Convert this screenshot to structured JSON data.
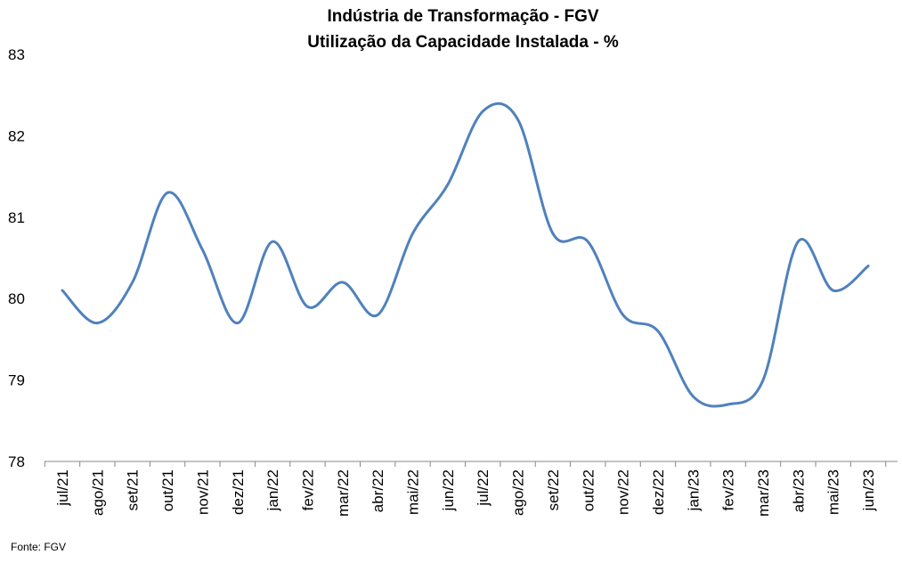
{
  "chart_data": {
    "type": "line",
    "title": "Indústria de Transformação - FGV",
    "subtitle": "Utilização da Capacidade Instalada - %",
    "categories": [
      "jul/21",
      "ago/21",
      "set/21",
      "out/21",
      "nov/21",
      "dez/21",
      "jan/22",
      "fev/22",
      "mar/22",
      "abr/22",
      "mai/22",
      "jun/22",
      "jul/22",
      "ago/22",
      "set/22",
      "out/22",
      "nov/22",
      "dez/22",
      "jan/23",
      "fev/23",
      "mar/23",
      "abr/23",
      "mai/23",
      "jun/23"
    ],
    "series": [
      {
        "values": [
          80.1,
          79.7,
          80.2,
          81.3,
          80.6,
          79.7,
          80.7,
          79.9,
          80.2,
          79.8,
          80.8,
          81.4,
          82.3,
          82.2,
          80.8,
          80.7,
          79.8,
          79.6,
          78.8,
          78.7,
          79.0,
          80.7,
          80.1,
          80.4
        ],
        "color": "#4f81bd"
      }
    ],
    "yticks": [
      "78",
      "79",
      "80",
      "81",
      "82",
      "83"
    ],
    "ylim": [
      78,
      83
    ],
    "grid": false,
    "legend": "none",
    "source": "Fonte: FGV"
  }
}
